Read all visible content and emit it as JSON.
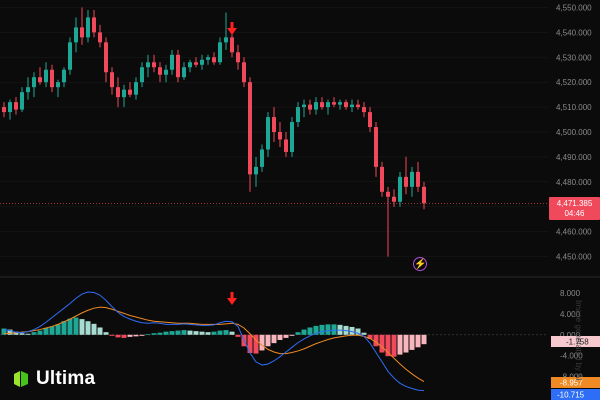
{
  "chart_data": [
    {
      "type": "candlestick",
      "title": "",
      "ylim": [
        4443,
        4553
      ],
      "y_ticks": [
        "4,550.000",
        "4,540.000",
        "4,530.000",
        "4,520.000",
        "4,510.000",
        "4,500.000",
        "4,490.000",
        "4,480.000",
        "4,470.000",
        "4,460.000",
        "4,450.000"
      ],
      "y_tick_values": [
        4550,
        4540,
        4530,
        4520,
        4510,
        4500,
        4490,
        4480,
        4470,
        4460,
        4450
      ],
      "last_price": "4,471.385",
      "countdown": "04:46",
      "price_line": 4471.385,
      "candles": [
        [
          4510,
          4512,
          4506,
          4508
        ],
        [
          4508,
          4513,
          4505,
          4512
        ],
        [
          4512,
          4514,
          4507,
          4509
        ],
        [
          4509,
          4518,
          4508,
          4516
        ],
        [
          4516,
          4522,
          4513,
          4518
        ],
        [
          4518,
          4524,
          4514,
          4522
        ],
        [
          4522,
          4526,
          4519,
          4520
        ],
        [
          4520,
          4528,
          4518,
          4525
        ],
        [
          4525,
          4527,
          4516,
          4518
        ],
        [
          4518,
          4521,
          4514,
          4520
        ],
        [
          4520,
          4526,
          4518,
          4525
        ],
        [
          4525,
          4538,
          4523,
          4536
        ],
        [
          4536,
          4546,
          4532,
          4542
        ],
        [
          4542,
          4550,
          4535,
          4538
        ],
        [
          4538,
          4549,
          4536,
          4546
        ],
        [
          4546,
          4549,
          4538,
          4540
        ],
        [
          4540,
          4543,
          4534,
          4536
        ],
        [
          4536,
          4538,
          4520,
          4524
        ],
        [
          4524,
          4526,
          4515,
          4518
        ],
        [
          4518,
          4522,
          4510,
          4514
        ],
        [
          4514,
          4519,
          4510,
          4517
        ],
        [
          4517,
          4520,
          4514,
          4515
        ],
        [
          4515,
          4522,
          4513,
          4520
        ],
        [
          4520,
          4528,
          4518,
          4526
        ],
        [
          4526,
          4531,
          4522,
          4528
        ],
        [
          4528,
          4531,
          4524,
          4526
        ],
        [
          4526,
          4528,
          4520,
          4523
        ],
        [
          4523,
          4527,
          4520,
          4525
        ],
        [
          4525,
          4533,
          4523,
          4531
        ],
        [
          4531,
          4533,
          4520,
          4522
        ],
        [
          4522,
          4528,
          4521,
          4526
        ],
        [
          4526,
          4529,
          4524,
          4528
        ],
        [
          4528,
          4530,
          4526,
          4527
        ],
        [
          4527,
          4531,
          4525,
          4529
        ],
        [
          4529,
          4531,
          4527,
          4530
        ],
        [
          4530,
          4532,
          4527,
          4528
        ],
        [
          4528,
          4538,
          4527,
          4536
        ],
        [
          4536,
          4548,
          4533,
          4538
        ],
        [
          4538,
          4541,
          4530,
          4532
        ],
        [
          4532,
          4535,
          4525,
          4528
        ],
        [
          4528,
          4530,
          4518,
          4520
        ],
        [
          4520,
          4522,
          4476,
          4483
        ],
        [
          4483,
          4490,
          4478,
          4486
        ],
        [
          4486,
          4495,
          4484,
          4493
        ],
        [
          4493,
          4508,
          4490,
          4506
        ],
        [
          4506,
          4510,
          4496,
          4500
        ],
        [
          4500,
          4504,
          4494,
          4497
        ],
        [
          4497,
          4500,
          4490,
          4492
        ],
        [
          4492,
          4506,
          4490,
          4504
        ],
        [
          4504,
          4512,
          4502,
          4510
        ],
        [
          4510,
          4513,
          4506,
          4511
        ],
        [
          4511,
          4513,
          4507,
          4509
        ],
        [
          4509,
          4514,
          4507,
          4512
        ],
        [
          4512,
          4514,
          4509,
          4510
        ],
        [
          4510,
          4513,
          4507,
          4512
        ],
        [
          4512,
          4514,
          4510,
          4511
        ],
        [
          4511,
          4513,
          4509,
          4512
        ],
        [
          4512,
          4513,
          4509,
          4510
        ],
        [
          4510,
          4513,
          4508,
          4511
        ],
        [
          4511,
          4513,
          4509,
          4510
        ],
        [
          4510,
          4512,
          4506,
          4508
        ],
        [
          4508,
          4510,
          4500,
          4502
        ],
        [
          4502,
          4504,
          4482,
          4486
        ],
        [
          4486,
          4488,
          4474,
          4476
        ],
        [
          4476,
          4478,
          4450,
          4474
        ],
        [
          4474,
          4477,
          4470,
          4472
        ],
        [
          4472,
          4484,
          4470,
          4482
        ],
        [
          4482,
          4490,
          4475,
          4478
        ],
        [
          4478,
          4486,
          4474,
          4484
        ],
        [
          4484,
          4488,
          4476,
          4478
        ],
        [
          4478,
          4480,
          4469,
          4471.385
        ]
      ],
      "annotations": [
        {
          "label": "sell-arrow-price",
          "at_candle": 37
        },
        {
          "label": "sell-arrow-macd",
          "at_candle": 37
        }
      ]
    },
    {
      "type": "macd",
      "ylim": [
        -12.5,
        10.5
      ],
      "y_ticks": [
        "8.000",
        "4.000",
        "0.000",
        "-4.000",
        "-8.000"
      ],
      "y_tick_values": [
        8,
        4,
        0,
        -4,
        -8
      ],
      "histogram_label": "-1.758",
      "signal_label": "-8.957",
      "macd_label": "-10.715",
      "histogram": [
        1.2,
        1.0,
        0.6,
        0.3,
        0.2,
        0.5,
        0.8,
        1.3,
        1.6,
        2.0,
        2.6,
        3.1,
        3.3,
        3.0,
        2.6,
        2.1,
        1.4,
        0.5,
        -0.2,
        -0.5,
        -0.6,
        -0.4,
        -0.3,
        -0.2,
        0.1,
        0.3,
        0.4,
        0.6,
        0.7,
        0.8,
        0.9,
        0.8,
        0.7,
        0.6,
        0.5,
        0.6,
        0.8,
        0.9,
        0.6,
        -0.4,
        -2.2,
        -3.5,
        -3.6,
        -3.0,
        -2.2,
        -1.6,
        -1.0,
        -0.6,
        -0.2,
        0.5,
        1.0,
        1.4,
        1.7,
        1.9,
        2.0,
        2.0,
        1.9,
        1.7,
        1.5,
        1.2,
        0.4,
        -0.8,
        -2.2,
        -3.4,
        -4.1,
        -4.2,
        -3.8,
        -3.4,
        -2.9,
        -2.4,
        -1.8
      ],
      "macd_line": [
        1.0,
        0.8,
        0.5,
        0.4,
        0.6,
        1.0,
        1.6,
        2.4,
        3.3,
        4.2,
        5.1,
        6.0,
        7.0,
        7.8,
        8.2,
        8.1,
        7.6,
        6.6,
        5.4,
        4.3,
        3.5,
        3.0,
        2.6,
        2.3,
        2.2,
        2.3,
        2.2,
        2.0,
        2.0,
        2.0,
        2.1,
        2.0,
        1.9,
        1.8,
        1.8,
        1.9,
        2.3,
        2.6,
        2.5,
        1.6,
        -1.0,
        -3.5,
        -5.2,
        -5.8,
        -5.6,
        -5.0,
        -4.2,
        -3.3,
        -2.4,
        -1.5,
        -0.8,
        -0.2,
        0.3,
        0.6,
        0.8,
        0.9,
        0.9,
        0.8,
        0.6,
        0.3,
        -0.3,
        -1.6,
        -3.4,
        -5.2,
        -7.0,
        -8.3,
        -9.3,
        -9.9,
        -10.3,
        -10.6,
        -10.715
      ],
      "signal_line": [
        0.2,
        0.3,
        0.4,
        0.5,
        0.6,
        0.8,
        1.0,
        1.3,
        1.6,
        2.0,
        2.5,
        3.0,
        3.6,
        4.2,
        4.7,
        5.1,
        5.3,
        5.2,
        4.9,
        4.5,
        4.1,
        3.7,
        3.4,
        3.1,
        2.8,
        2.6,
        2.5,
        2.4,
        2.3,
        2.2,
        2.2,
        2.2,
        2.1,
        2.0,
        2.0,
        2.0,
        2.0,
        2.1,
        2.2,
        2.0,
        1.3,
        0.2,
        -1.0,
        -2.0,
        -2.8,
        -3.3,
        -3.6,
        -3.6,
        -3.4,
        -3.1,
        -2.7,
        -2.2,
        -1.7,
        -1.3,
        -0.9,
        -0.6,
        -0.4,
        -0.2,
        -0.1,
        -0.1,
        -0.3,
        -0.7,
        -1.4,
        -2.3,
        -3.4,
        -4.5,
        -5.6,
        -6.6,
        -7.5,
        -8.3,
        -8.957
      ]
    }
  ],
  "brand": {
    "name": "Ultima"
  },
  "watermark": "Image generated by AI",
  "colors": {
    "up": "#1fa795",
    "down": "#f0495b",
    "hist_up_strong": "#1fa795",
    "hist_up_weak": "#a8dcd2",
    "hist_down_strong": "#f0495b",
    "hist_down_weak": "#f7b6bd",
    "macd_line": "#2e6df5",
    "signal_line": "#f08a24",
    "price_label_bg": "#f0495b",
    "signal_label_bg": "#f08a24",
    "macd_label_bg": "#2e6df5",
    "hist_label_bg": "#f7c9cf",
    "arrow": "#ff2020",
    "grid": "#1c1c1c",
    "axis_text": "#8a8a8a"
  }
}
